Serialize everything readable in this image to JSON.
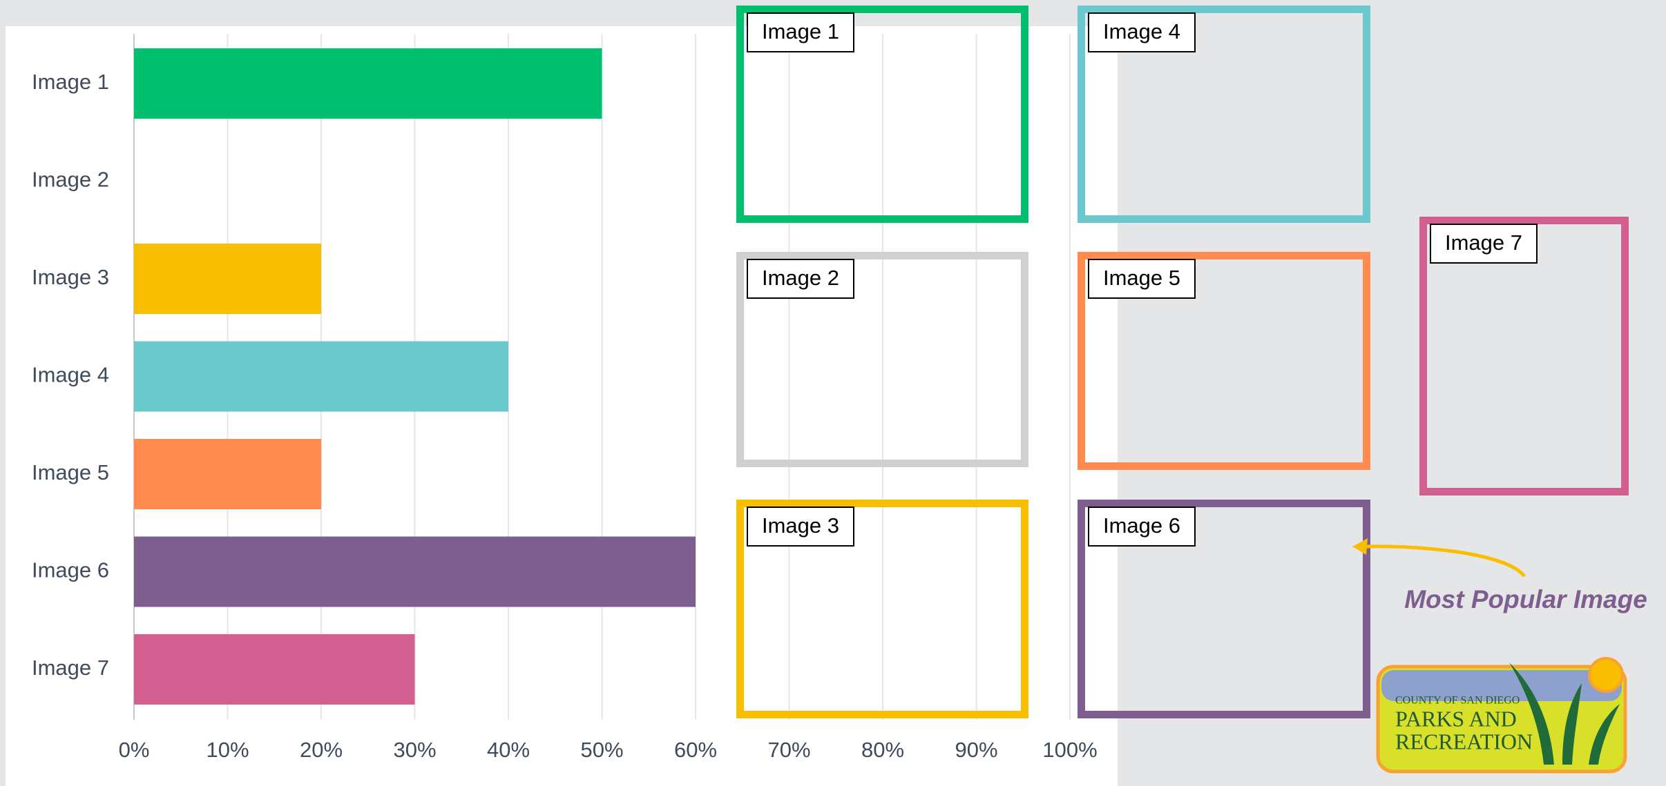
{
  "chart_data": {
    "type": "bar",
    "categories": [
      "Image 1",
      "Image 2",
      "Image 3",
      "Image 4",
      "Image 5",
      "Image 6",
      "Image 7"
    ],
    "values": [
      50,
      0,
      20,
      40,
      20,
      60,
      30
    ],
    "colors": [
      "#00bf6f",
      "#d0d0d0",
      "#f9be00",
      "#6bc8cd",
      "#ff8b4f",
      "#7d5e8e",
      "#d25f90"
    ],
    "xlim": [
      0,
      100
    ],
    "xticks": [
      {
        "value": 0,
        "label": "0%"
      },
      {
        "value": 10,
        "label": "10%"
      },
      {
        "value": 20,
        "label": "20%"
      },
      {
        "value": 30,
        "label": "30%"
      },
      {
        "value": 40,
        "label": "40%"
      },
      {
        "value": 50,
        "label": "50%"
      },
      {
        "value": 60,
        "label": "60%"
      },
      {
        "value": 70,
        "label": "70%"
      },
      {
        "value": 80,
        "label": "80%"
      },
      {
        "value": 90,
        "label": "90%"
      },
      {
        "value": 100,
        "label": "100%"
      }
    ],
    "grid": true
  },
  "boxes": [
    {
      "label": "Image 1",
      "color": "#00bf6f"
    },
    {
      "label": "Image 2",
      "color": "#d0d0d0"
    },
    {
      "label": "Image 3",
      "color": "#f9be00"
    },
    {
      "label": "Image 4",
      "color": "#6bc8cd"
    },
    {
      "label": "Image 5",
      "color": "#ff8b4f"
    },
    {
      "label": "Image 6",
      "color": "#7d5e8e"
    },
    {
      "label": "Image 7",
      "color": "#d25f90"
    }
  ],
  "annotation": "Most Popular Image",
  "logo": [
    "COUNTY OF SAN DIEGO",
    "PARKS AND",
    "RECREATION"
  ]
}
